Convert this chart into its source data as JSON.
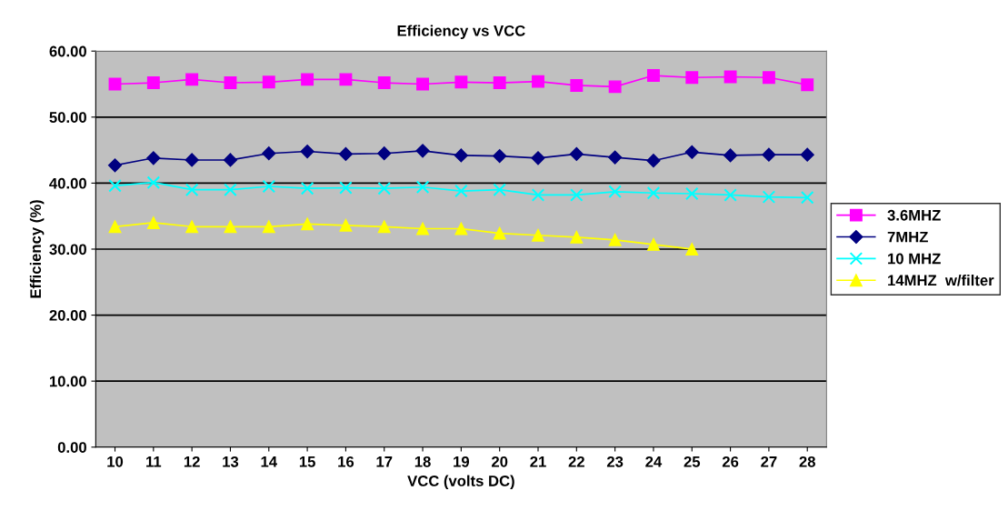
{
  "chart_data": {
    "type": "line",
    "title": "Efficiency vs VCC",
    "xlabel": "VCC (volts DC)",
    "ylabel": "Efficiency (%)",
    "categories": [
      "10",
      "11",
      "12",
      "13",
      "14",
      "15",
      "16",
      "17",
      "18",
      "19",
      "20",
      "21",
      "22",
      "23",
      "24",
      "25",
      "26",
      "27",
      "28"
    ],
    "series": [
      {
        "name": "3.6MHZ",
        "color": "#ff00ff",
        "marker": "square",
        "values": [
          55.0,
          55.2,
          55.7,
          55.2,
          55.3,
          55.7,
          55.7,
          55.2,
          55.0,
          55.3,
          55.2,
          55.4,
          54.8,
          54.6,
          56.3,
          56.0,
          56.1,
          56.0,
          54.9
        ]
      },
      {
        "name": "7MHZ",
        "color": "#000080",
        "marker": "diamond",
        "values": [
          42.7,
          43.8,
          43.5,
          43.5,
          44.5,
          44.8,
          44.4,
          44.5,
          44.9,
          44.2,
          44.1,
          43.8,
          44.4,
          43.9,
          43.4,
          44.7,
          44.2,
          44.3,
          44.3
        ]
      },
      {
        "name": "10 MHZ",
        "color": "#00ffff",
        "marker": "cross",
        "values": [
          39.6,
          40.1,
          39.0,
          39.0,
          39.5,
          39.2,
          39.3,
          39.2,
          39.4,
          38.8,
          39.0,
          38.2,
          38.2,
          38.7,
          38.5,
          38.4,
          38.2,
          37.9,
          37.8
        ]
      },
      {
        "name": "14MHZ  w/filter",
        "color": "#ffff00",
        "marker": "triangle",
        "values": [
          33.4,
          34.0,
          33.4,
          33.4,
          33.4,
          33.8,
          33.6,
          33.4,
          33.1,
          33.1,
          32.4,
          32.1,
          31.8,
          31.4,
          30.7,
          30.0,
          null,
          null,
          null
        ]
      }
    ],
    "ylim": [
      0,
      60
    ],
    "yticks": [
      {
        "value": 0,
        "label": "0.00"
      },
      {
        "value": 10,
        "label": "10.00"
      },
      {
        "value": 20,
        "label": "20.00"
      },
      {
        "value": 30,
        "label": "30.00"
      },
      {
        "value": 40,
        "label": "40.00"
      },
      {
        "value": 50,
        "label": "50.00"
      },
      {
        "value": 60,
        "label": "60.00"
      }
    ],
    "grid": "y",
    "legend": "right",
    "line_style": "solid"
  }
}
